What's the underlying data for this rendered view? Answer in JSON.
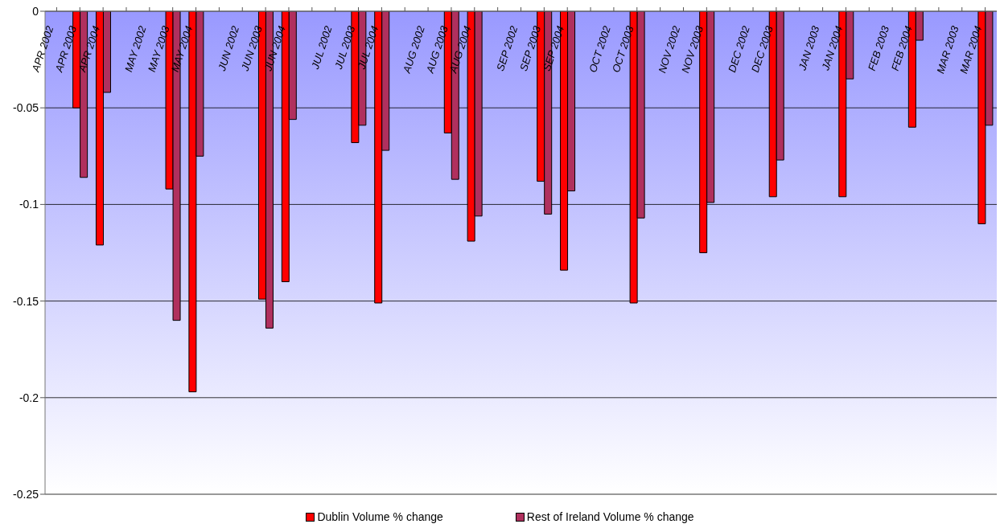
{
  "chart_data": {
    "type": "bar",
    "categories": [
      "APR 2002",
      "APR 2003",
      "APR 2004",
      null,
      "MAY 2002",
      "MAY 2003",
      "MAY 2004",
      null,
      "JUN 2002",
      "JUN 2003",
      "JUN 2004",
      null,
      "JUL 2002",
      "JUL 2003",
      "JUL 2004",
      null,
      "AUG 2002",
      "AUG 2003",
      "AUG 2004",
      null,
      "SEP 2002",
      "SEP 2003",
      "SEP 2004",
      null,
      "OCT 2002",
      "OCT 2003",
      null,
      "NOV 2002",
      "NOV 2003",
      null,
      "DEC 2002",
      "DEC 2003",
      null,
      "JAN 2003",
      "JAN 2004",
      null,
      "FEB 2003",
      "FEB 2004",
      null,
      "MAR 2003",
      "MAR 2004"
    ],
    "series": [
      {
        "name": "Dublin Volume % change",
        "color": "#ff0000",
        "values": [
          null,
          -0.05,
          -0.121,
          null,
          null,
          -0.092,
          -0.197,
          null,
          null,
          -0.149,
          -0.14,
          null,
          null,
          -0.068,
          -0.151,
          null,
          null,
          -0.063,
          -0.119,
          null,
          null,
          -0.088,
          -0.134,
          null,
          null,
          -0.151,
          null,
          null,
          -0.125,
          null,
          null,
          -0.096,
          null,
          null,
          -0.096,
          null,
          null,
          -0.06,
          null,
          null,
          -0.11
        ]
      },
      {
        "name": "Rest of Ireland Volume % change",
        "color": "#b0305e",
        "values": [
          null,
          -0.086,
          -0.042,
          null,
          null,
          -0.16,
          -0.075,
          null,
          null,
          -0.164,
          -0.056,
          null,
          null,
          -0.059,
          -0.072,
          null,
          null,
          -0.087,
          -0.106,
          null,
          null,
          -0.105,
          -0.093,
          null,
          null,
          -0.107,
          null,
          null,
          -0.099,
          null,
          null,
          -0.077,
          null,
          null,
          -0.035,
          null,
          null,
          -0.015,
          null,
          null,
          -0.059
        ]
      }
    ],
    "ylim": [
      -0.25,
      0
    ],
    "yticks": [
      -0.25,
      -0.2,
      -0.15,
      -0.1,
      -0.05,
      0
    ],
    "grid": "y",
    "legend": "bottom"
  }
}
